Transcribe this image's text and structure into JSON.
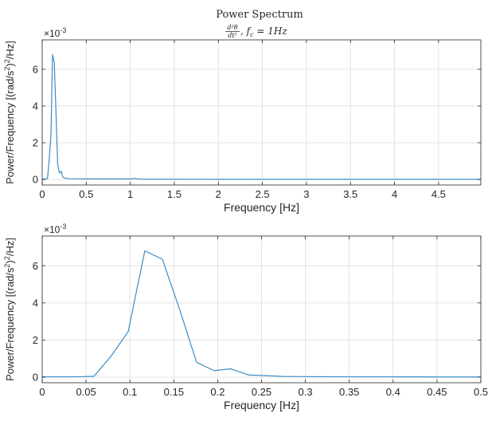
{
  "figure": {
    "title": "Power Spectrum",
    "subtitle_parts": {
      "frac_num": "d²θ",
      "frac_den": "dt²",
      "tail": ", f",
      "sub": "c",
      "eq": " = 1Hz"
    }
  },
  "chart_data": [
    {
      "type": "line",
      "xlabel": "Frequency [Hz]",
      "ylabel": "Power/Frequency [(rad/s²)²/Hz]",
      "ylabel_parts": [
        "Power/Frequency [(rad/s",
        "2",
        ")",
        "2",
        "/Hz]"
      ],
      "y_multiplier": "×10",
      "y_multiplier_exp": "-3",
      "xlim": [
        0,
        4.98
      ],
      "ylim": [
        -0.3,
        7.6
      ],
      "x_ticks": [
        0,
        0.5,
        1,
        1.5,
        2,
        2.5,
        3,
        3.5,
        4,
        4.5
      ],
      "x_tick_labels": [
        "0",
        "0.5",
        "1",
        "1.5",
        "2",
        "2.5",
        "3",
        "3.5",
        "4",
        "4.5"
      ],
      "y_ticks": [
        0,
        2,
        4,
        6
      ],
      "y_tick_labels": [
        "0",
        "2",
        "4",
        "6"
      ],
      "grid": true,
      "series": [
        {
          "color": "#3a8cc8",
          "x": [
            0,
            0.02,
            0.04,
            0.06,
            0.08,
            0.1,
            0.117,
            0.137,
            0.157,
            0.176,
            0.196,
            0.215,
            0.235,
            0.255,
            0.3,
            0.5,
            1.0,
            1.05,
            1.1,
            2,
            3,
            4,
            4.98
          ],
          "y": [
            0.02,
            0.02,
            0.02,
            0.05,
            1.1,
            2.45,
            6.8,
            6.35,
            3.6,
            0.8,
            0.35,
            0.45,
            0.12,
            0.08,
            0.04,
            0.03,
            0.03,
            0.05,
            0.02,
            0.01,
            0.01,
            0.01,
            0.01
          ]
        }
      ]
    },
    {
      "type": "line",
      "xlabel": "Frequency [Hz]",
      "ylabel": "Power/Frequency [(rad/s²)²/Hz]",
      "ylabel_parts": [
        "Power/Frequency [(rad/s",
        "2",
        ")",
        "2",
        "/Hz]"
      ],
      "y_multiplier": "×10",
      "y_multiplier_exp": "-3",
      "xlim": [
        0,
        0.5
      ],
      "ylim": [
        -0.3,
        7.6
      ],
      "x_ticks": [
        0,
        0.05,
        0.1,
        0.15,
        0.2,
        0.25,
        0.3,
        0.35,
        0.4,
        0.45,
        0.5
      ],
      "x_tick_labels": [
        "0",
        "0.05",
        "0.1",
        "0.15",
        "0.2",
        "0.25",
        "0.3",
        "0.35",
        "0.4",
        "0.45",
        "0.5"
      ],
      "y_ticks": [
        0,
        2,
        4,
        6
      ],
      "y_tick_labels": [
        "0",
        "2",
        "4",
        "6"
      ],
      "grid": true,
      "series": [
        {
          "color": "#3a8cc8",
          "x": [
            0,
            0.02,
            0.04,
            0.059,
            0.078,
            0.098,
            0.117,
            0.137,
            0.157,
            0.176,
            0.196,
            0.215,
            0.235,
            0.255,
            0.274,
            0.3,
            0.35,
            0.4,
            0.45,
            0.5
          ],
          "y": [
            0.02,
            0.02,
            0.02,
            0.05,
            1.1,
            2.45,
            6.8,
            6.35,
            3.6,
            0.8,
            0.35,
            0.45,
            0.12,
            0.08,
            0.04,
            0.03,
            0.02,
            0.02,
            0.01,
            0.01
          ]
        }
      ]
    }
  ]
}
